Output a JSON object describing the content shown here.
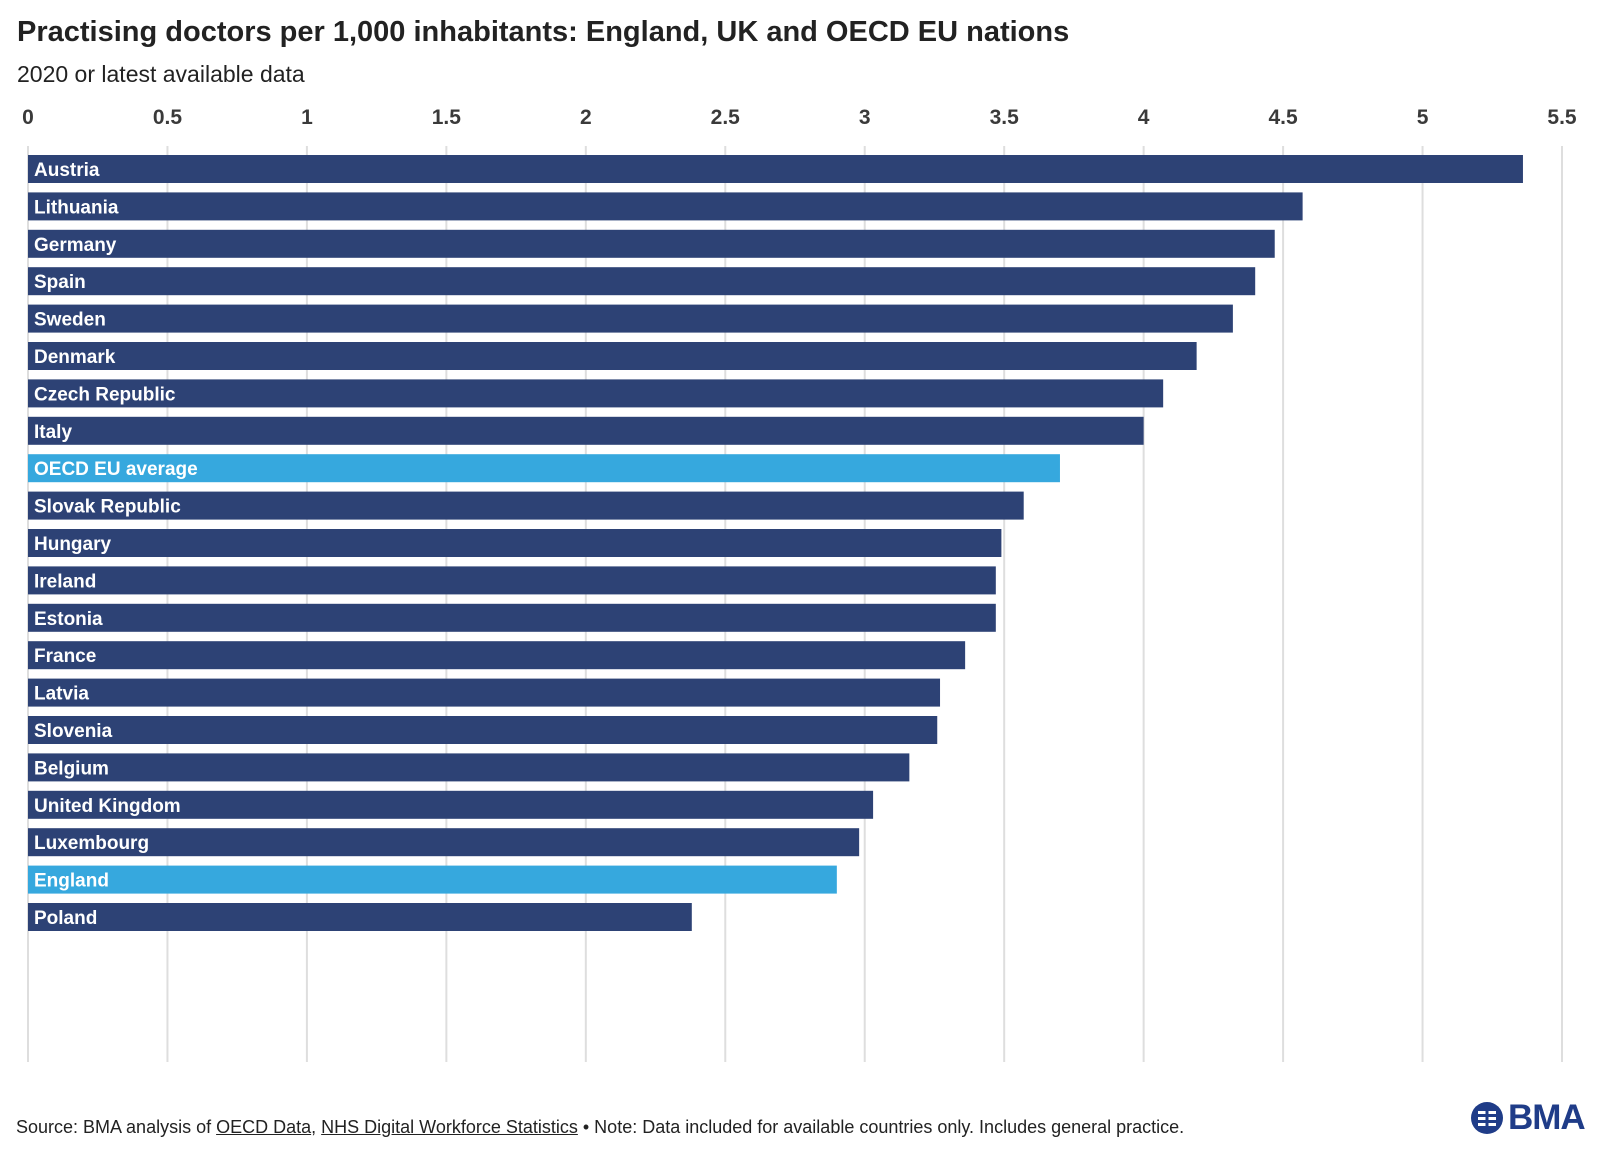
{
  "title": "Practising doctors per 1,000 inhabitants: England, UK and OECD EU nations",
  "subtitle": "2020 or latest available data",
  "colors": {
    "bar": "#2d4275",
    "highlight": "#36a8de",
    "grid": "#dedede"
  },
  "chart_data": {
    "type": "bar",
    "orientation": "horizontal",
    "title": "Practising doctors per 1,000 inhabitants: England, UK and OECD EU nations",
    "subtitle": "2020 or latest available data",
    "xlim": [
      0,
      5.5
    ],
    "x_ticks": [
      "0",
      "0.5",
      "1",
      "1.5",
      "2",
      "2.5",
      "3",
      "3.5",
      "4",
      "4.5",
      "5",
      "5.5"
    ],
    "x_axis_position": "top",
    "grid": true,
    "categories": [
      "Austria",
      "Lithuania",
      "Germany",
      "Spain",
      "Sweden",
      "Denmark",
      "Czech Republic",
      "Italy",
      "OECD EU average",
      "Slovak Republic",
      "Hungary",
      "Ireland",
      "Estonia",
      "France",
      "Latvia",
      "Slovenia",
      "Belgium",
      "United Kingdom",
      "Luxembourg",
      "England",
      "Poland"
    ],
    "values": [
      5.36,
      4.57,
      4.47,
      4.4,
      4.32,
      4.19,
      4.07,
      4.0,
      3.7,
      3.57,
      3.49,
      3.47,
      3.47,
      3.36,
      3.27,
      3.26,
      3.16,
      3.03,
      2.98,
      2.9,
      2.38
    ],
    "highlighted": [
      "OECD EU average",
      "England"
    ]
  },
  "footer": {
    "prefix": "Source: BMA analysis of ",
    "link1": "OECD Data",
    "sep": ", ",
    "link2": "NHS Digital Workforce Statistics",
    "note": " • Note: Data included for available countries only. Includes general practice."
  },
  "logo": {
    "text": "BMA",
    "icon": "bma-logo-icon"
  }
}
